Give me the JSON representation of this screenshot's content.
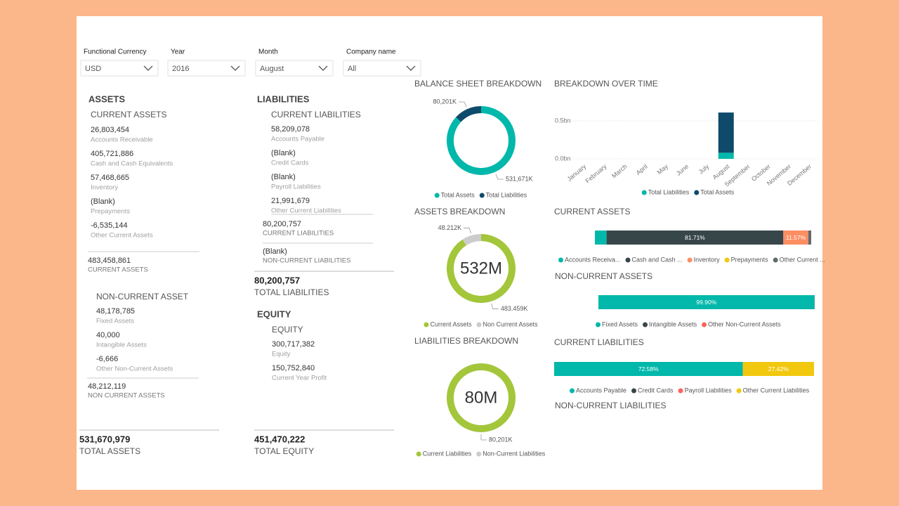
{
  "filters": [
    {
      "label": "Functional Currency",
      "value": "USD"
    },
    {
      "label": "Year",
      "value": "2016"
    },
    {
      "label": "Month",
      "value": "August"
    },
    {
      "label": "Company name",
      "value": "All"
    }
  ],
  "assets": {
    "title": "ASSETS",
    "current": {
      "title": "CURRENT ASSETS",
      "items": [
        {
          "value": "26,803,454",
          "label": "Accounts Receivable"
        },
        {
          "value": "405,721,886",
          "label": "Cash and Cash Equivalents"
        },
        {
          "value": "57,468,665",
          "label": "Inventory"
        },
        {
          "value": "(Blank)",
          "label": "Prepayments"
        },
        {
          "value": "-6,535,144",
          "label": "Other Current Assets"
        }
      ],
      "total": {
        "value": "483,458,861",
        "label": "CURRENT ASSETS"
      }
    },
    "non_current": {
      "title": "NON-CURRENT ASSET",
      "items": [
        {
          "value": "48,178,785",
          "label": "Fixed Assets"
        },
        {
          "value": "40,000",
          "label": "Intangible Assets"
        },
        {
          "value": "-6,666",
          "label": "Other Non-Current Assets"
        }
      ],
      "total": {
        "value": "48,212,119",
        "label": "NON CURRENT ASSETS"
      }
    },
    "total": {
      "value": "531,670,979",
      "label": "TOTAL ASSETS"
    }
  },
  "liabilities": {
    "title": "LIABILITIES",
    "current": {
      "title": "CURRENT LIABILITIES",
      "items": [
        {
          "value": "58,209,078",
          "label": "Accounts Payable"
        },
        {
          "value": "(Blank)",
          "label": "Credit Cards"
        },
        {
          "value": "(Blank)",
          "label": "Payroll Liabilities"
        },
        {
          "value": "21,991,679",
          "label": "Other Current Liabilities"
        }
      ],
      "total": {
        "value": "80,200,757",
        "label": "CURRENT LIABILITIES"
      }
    },
    "non_current": {
      "total": {
        "value": "(Blank)",
        "label": "NON-CURRENT LIABILITIES"
      }
    },
    "total": {
      "value": "80,200,757",
      "label": "TOTAL LIABILITIES"
    }
  },
  "equity": {
    "title": "EQUITY",
    "section": {
      "title": "EQUITY",
      "items": [
        {
          "value": "300,717,382",
          "label": "Equity"
        },
        {
          "value": "150,752,840",
          "label": "Current Year Profit"
        }
      ]
    },
    "total": {
      "value": "451,470,222",
      "label": "TOTAL EQUITY"
    }
  },
  "non_current_liabilities_title": "NON-CURRENT LIABILITIES",
  "chart_data": [
    {
      "type": "donut",
      "title": "BALANCE SHEET BREAKDOWN",
      "categories": [
        "Total Assets",
        "Total Liabilities"
      ],
      "values": [
        531671,
        80201
      ],
      "value_labels": [
        "531,671K",
        "80,201K"
      ],
      "colors": [
        "#01b8aa",
        "#0e4a6b"
      ]
    },
    {
      "type": "donut",
      "title": "ASSETS BREAKDOWN",
      "categories": [
        "Current Assets",
        "Non Current Assets"
      ],
      "values": [
        483459,
        48212
      ],
      "value_labels": [
        "483.459K",
        "48.212K"
      ],
      "colors": [
        "#a3c63b",
        "#cccccc"
      ],
      "center_label": "532M"
    },
    {
      "type": "donut",
      "title": "LIABILITIES BREAKDOWN",
      "categories": [
        "Current Liabilities",
        "Non-Current Liabilities"
      ],
      "values": [
        80201,
        0
      ],
      "value_labels": [
        "80,201K",
        null
      ],
      "colors": [
        "#a3c63b",
        "#cccccc"
      ],
      "center_label": "80M"
    },
    {
      "type": "column",
      "title": "BREAKDOWN OVER TIME",
      "categories": [
        "January",
        "February",
        "March",
        "April",
        "May",
        "June",
        "July",
        "August",
        "September",
        "October",
        "November",
        "December"
      ],
      "series": [
        {
          "name": "Total Liabilities",
          "color": "#01b8aa",
          "values": [
            null,
            null,
            null,
            null,
            null,
            null,
            null,
            0.08,
            null,
            null,
            null,
            null
          ]
        },
        {
          "name": "Total Assets",
          "color": "#0e4a6b",
          "values": [
            null,
            null,
            null,
            null,
            null,
            null,
            null,
            0.53,
            null,
            null,
            null,
            null
          ]
        }
      ],
      "ylim": [
        0,
        0.65
      ],
      "yticks": [
        {
          "value": 0,
          "label": "0.0bn"
        },
        {
          "value": 0.5,
          "label": "0.5bn"
        }
      ],
      "grid": true
    },
    {
      "type": "stacked_bar",
      "title": "CURRENT ASSETS",
      "xlim": [
        0,
        100
      ],
      "series": [
        {
          "name": "Accounts Receiva...",
          "color": "#01b8aa",
          "values": [
            5.4
          ]
        },
        {
          "name": "Cash and Cash ...",
          "color": "#374649",
          "values": [
            81.71
          ],
          "value_labels": [
            "81.71%"
          ]
        },
        {
          "name": "Inventory",
          "color": "#fd8d62",
          "values": [
            11.57
          ],
          "value_labels": [
            "11.57%"
          ]
        },
        {
          "name": "Prepayments",
          "color": "#f2c80f",
          "values": [
            null
          ]
        },
        {
          "name": "Other Current ...",
          "color": "#5f6b6d",
          "values": [
            1.32
          ]
        }
      ]
    },
    {
      "type": "stacked_bar",
      "title": "NON-CURRENT ASSETS",
      "xlim": [
        0,
        100
      ],
      "series": [
        {
          "name": "Fixed Assets",
          "color": "#01b8aa",
          "values": [
            99.9
          ],
          "value_labels": [
            "99.90%"
          ]
        },
        {
          "name": "Intangible Assets",
          "color": "#374649",
          "values": [
            0.08
          ]
        },
        {
          "name": "Other Non-Current Assets",
          "color": "#fd625e",
          "values": [
            0.01
          ]
        }
      ]
    },
    {
      "type": "stacked_bar",
      "title": "CURRENT LIABILITIES",
      "xlim": [
        0,
        100
      ],
      "series": [
        {
          "name": "Accounts Payable",
          "color": "#01b8aa",
          "values": [
            72.58
          ],
          "value_labels": [
            "72.58%"
          ]
        },
        {
          "name": "Credit Cards",
          "color": "#374649",
          "values": [
            null
          ]
        },
        {
          "name": "Payroll Liabilities",
          "color": "#fd625e",
          "values": [
            null
          ]
        },
        {
          "name": "Other Current Liabilities",
          "color": "#f2c80f",
          "values": [
            27.42
          ],
          "value_labels": [
            "27.42%"
          ]
        }
      ]
    }
  ]
}
